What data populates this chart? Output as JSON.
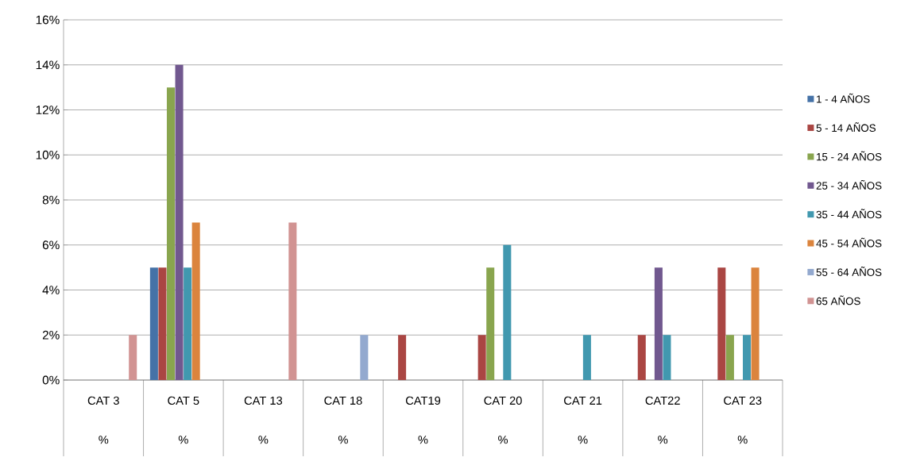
{
  "chart_data": {
    "type": "bar",
    "categories": [
      "CAT 3 %",
      "CAT 5 %",
      "CAT 13 %",
      "CAT 18 %",
      "CAT19 %",
      "CAT 20 %",
      "CAT 21 %",
      "CAT22 %",
      "CAT 23 %"
    ],
    "series": [
      {
        "name": "1 - 4 AÑOS",
        "color": "#4572a7",
        "values": [
          null,
          5,
          null,
          null,
          null,
          null,
          null,
          null,
          null
        ]
      },
      {
        "name": "5 - 14 AÑOS",
        "color": "#aa4643",
        "values": [
          null,
          5,
          null,
          null,
          2,
          2,
          null,
          2,
          5
        ]
      },
      {
        "name": "15 - 24 AÑOS",
        "color": "#89a54e",
        "values": [
          null,
          13,
          null,
          null,
          null,
          5,
          null,
          null,
          2
        ]
      },
      {
        "name": "25 - 34 AÑOS",
        "color": "#71588f",
        "values": [
          null,
          14,
          null,
          null,
          null,
          null,
          null,
          5,
          null
        ]
      },
      {
        "name": "35 - 44 AÑOS",
        "color": "#4198af",
        "values": [
          null,
          5,
          null,
          null,
          null,
          6,
          2,
          2,
          2
        ]
      },
      {
        "name": "45 - 54 AÑOS",
        "color": "#db843d",
        "values": [
          null,
          7,
          null,
          null,
          null,
          null,
          null,
          null,
          5
        ]
      },
      {
        "name": "55 - 64 AÑOS",
        "color": "#93a9cf",
        "values": [
          null,
          null,
          null,
          2,
          null,
          null,
          null,
          null,
          null
        ]
      },
      {
        "name": "65 AÑOS",
        "color": "#d19392",
        "values": [
          2,
          null,
          7,
          null,
          null,
          null,
          null,
          null,
          null
        ]
      }
    ],
    "ylim": [
      0,
      16
    ],
    "yticks": [
      {
        "value": 0,
        "label": "0%"
      },
      {
        "value": 2,
        "label": "2%"
      },
      {
        "value": 4,
        "label": "4%"
      },
      {
        "value": 6,
        "label": "6%"
      },
      {
        "value": 8,
        "label": "8%"
      },
      {
        "value": 10,
        "label": "10%"
      },
      {
        "value": 12,
        "label": "12%"
      },
      {
        "value": 14,
        "label": "14%"
      },
      {
        "value": 16,
        "label": "16%"
      }
    ],
    "grid": "y",
    "legend": "right"
  }
}
